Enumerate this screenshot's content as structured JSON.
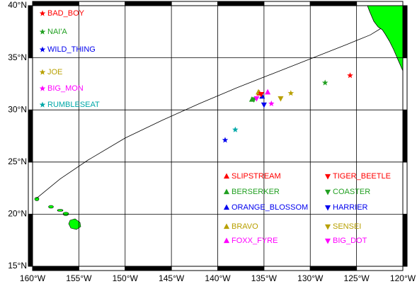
{
  "chart_data": {
    "type": "scatter",
    "xlim": [
      -160,
      -120
    ],
    "ylim": [
      15,
      40
    ],
    "xticks": [
      {
        "value": -160,
        "label": "160°W"
      },
      {
        "value": -155,
        "label": "155°W"
      },
      {
        "value": -150,
        "label": "150°W"
      },
      {
        "value": -145,
        "label": "145°W"
      },
      {
        "value": -140,
        "label": "140°W"
      },
      {
        "value": -135,
        "label": "135°W"
      },
      {
        "value": -130,
        "label": "130°W"
      },
      {
        "value": -125,
        "label": "125°W"
      },
      {
        "value": -120,
        "label": "120°W"
      }
    ],
    "yticks": [
      {
        "value": 15,
        "label": "15°N"
      },
      {
        "value": 20,
        "label": "20°N"
      },
      {
        "value": 25,
        "label": "25°N"
      },
      {
        "value": 30,
        "label": "30°N"
      },
      {
        "value": 35,
        "label": "35°N"
      },
      {
        "value": 40,
        "label": "40°N"
      }
    ],
    "grid": true,
    "track": {
      "x": [
        -159.6,
        -157,
        -154,
        -150,
        -146,
        -142,
        -138,
        -134,
        -130,
        -126,
        -123.5,
        -122.4
      ],
      "y": [
        21.5,
        23.4,
        25.2,
        27.3,
        29.0,
        30.6,
        32.1,
        33.5,
        34.9,
        36.3,
        37.2,
        37.8
      ]
    },
    "series": [
      {
        "name": "BAD_BOY",
        "color": "#ff0000",
        "marker": "star",
        "x": [
          -125.7
        ],
        "y": [
          33.3
        ]
      },
      {
        "name": "NAI'A",
        "color": "#22a022",
        "marker": "star",
        "x": [
          -128.4
        ],
        "y": [
          32.6
        ]
      },
      {
        "name": "WILD_THING",
        "color": "#0000ee",
        "marker": "star",
        "x": [
          -139.2
        ],
        "y": [
          27.1
        ]
      },
      {
        "name": "JOE",
        "color": "#b8a000",
        "marker": "star",
        "x": [
          -132.1
        ],
        "y": [
          31.6
        ]
      },
      {
        "name": "BIG_MON",
        "color": "#ff00ff",
        "marker": "star",
        "x": [
          -134.2
        ],
        "y": [
          30.6
        ]
      },
      {
        "name": "RUMBLESEAT",
        "color": "#00a8a8",
        "marker": "star",
        "x": [
          -138.1
        ],
        "y": [
          28.1
        ]
      },
      {
        "name": "SLIPSTREAM",
        "color": "#ff0000",
        "marker": "up",
        "x": [
          -135.5
        ],
        "y": [
          31.6
        ]
      },
      {
        "name": "BERSERKER",
        "color": "#22a022",
        "marker": "up",
        "x": [
          -136.3
        ],
        "y": [
          31.0
        ]
      },
      {
        "name": "ORANGE_BLOSSOM",
        "color": "#0000ee",
        "marker": "up",
        "x": [
          -135.2
        ],
        "y": [
          31.3
        ]
      },
      {
        "name": "BRAVO",
        "color": "#b8a000",
        "marker": "up",
        "x": [
          -135.6
        ],
        "y": [
          31.7
        ]
      },
      {
        "name": "FOXX_FYRE",
        "color": "#ff00ff",
        "marker": "up",
        "x": [
          -134.6
        ],
        "y": [
          31.7
        ]
      },
      {
        "name": "TIGER_BEETLE",
        "color": "#ff0000",
        "marker": "down",
        "x": [
          -135.3
        ],
        "y": [
          31.5
        ]
      },
      {
        "name": "COASTER",
        "color": "#22a022",
        "marker": "down",
        "x": [
          -136.1
        ],
        "y": [
          31.0
        ]
      },
      {
        "name": "HARRIER",
        "color": "#0000ee",
        "marker": "down",
        "x": [
          -135.0
        ],
        "y": [
          30.5
        ]
      },
      {
        "name": "SENSEI",
        "color": "#b8a000",
        "marker": "down",
        "x": [
          -133.2
        ],
        "y": [
          31.1
        ]
      },
      {
        "name": "BIG_DOT",
        "color": "#ff00ff",
        "marker": "down",
        "x": [
          -135.8
        ],
        "y": [
          31.1
        ]
      }
    ]
  }
}
